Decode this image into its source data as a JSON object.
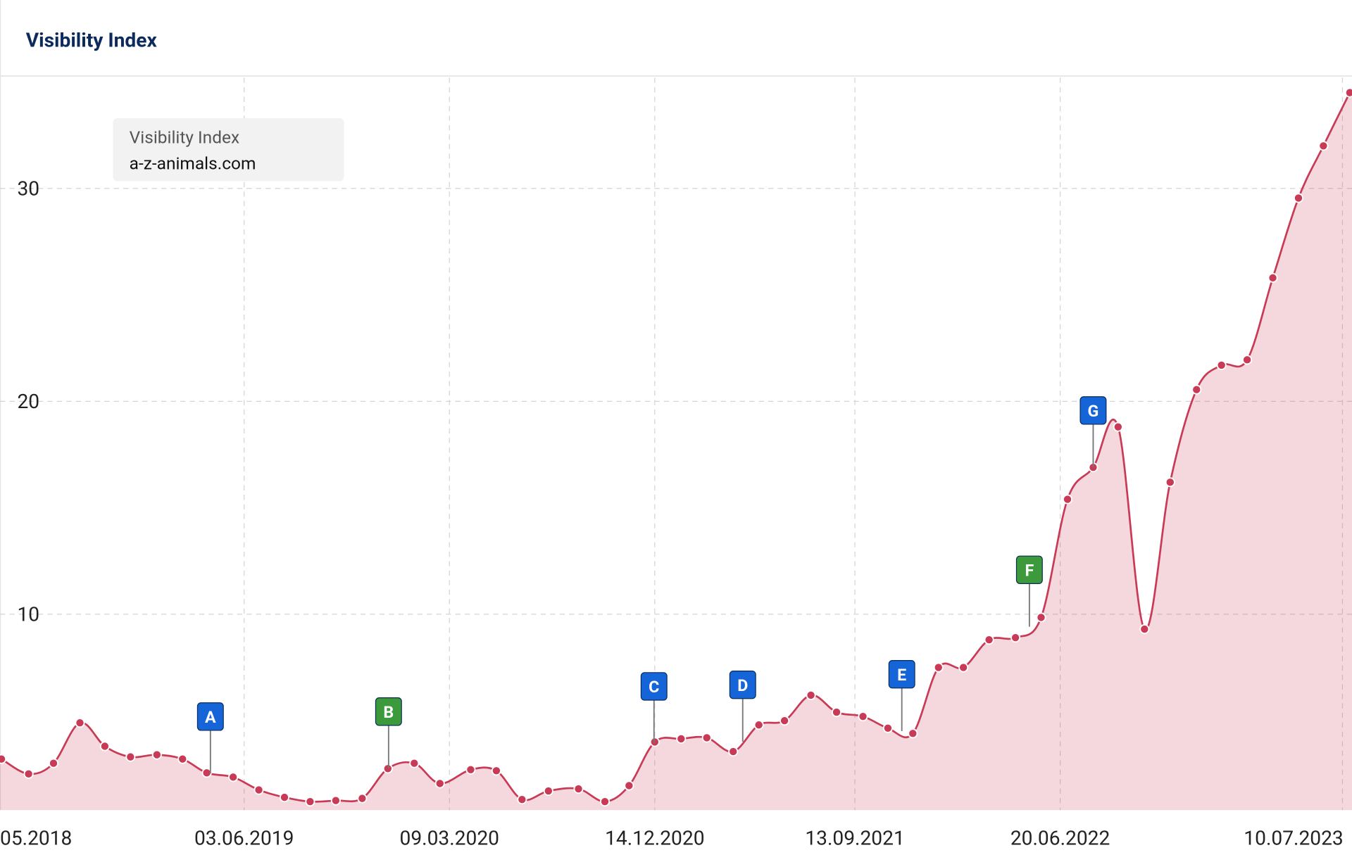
{
  "chart_data": {
    "type": "line",
    "title": "Visibility Index",
    "legend_title": "Visibility Index",
    "series": [
      {
        "name": "a-z-animals.com",
        "color": "#c83a55",
        "x": [
          "2018-07-07",
          "2018-08-13",
          "2018-09-16",
          "2018-10-22",
          "2018-11-25",
          "2018-12-30",
          "2019-02-04",
          "2019-03-11",
          "2019-04-13",
          "2019-05-19",
          "2019-06-23",
          "2019-07-28",
          "2019-09-01",
          "2019-10-06",
          "2019-11-11",
          "2019-12-16",
          "2020-01-21",
          "2020-02-25",
          "2020-04-07",
          "2020-05-12",
          "2020-06-16",
          "2020-07-22",
          "2020-09-01",
          "2020-10-07",
          "2020-11-09",
          "2020-12-14",
          "2021-01-19",
          "2021-02-23",
          "2021-03-31",
          "2021-05-05",
          "2021-06-09",
          "2021-07-15",
          "2021-08-19",
          "2021-09-24",
          "2021-10-28",
          "2021-12-01",
          "2022-01-05",
          "2022-02-08",
          "2022-03-15",
          "2022-04-20",
          "2022-05-25",
          "2022-06-30",
          "2022-08-04",
          "2022-09-07",
          "2022-10-13",
          "2022-11-17",
          "2022-12-23",
          "2023-01-26",
          "2023-03-02",
          "2023-04-06",
          "2023-05-11",
          "2023-06-14",
          "2023-07-20"
        ],
        "values": [
          3.2,
          2.5,
          3.0,
          4.9,
          3.8,
          3.3,
          3.4,
          3.2,
          2.55,
          2.35,
          1.75,
          1.4,
          1.2,
          1.25,
          1.35,
          2.75,
          3.0,
          2.05,
          2.7,
          2.65,
          1.3,
          1.7,
          1.8,
          1.2,
          1.95,
          4.0,
          4.15,
          4.2,
          3.55,
          4.8,
          5.0,
          6.2,
          5.4,
          5.2,
          4.65,
          4.4,
          7.5,
          7.5,
          8.8,
          8.9,
          9.85,
          15.4,
          16.9,
          18.8,
          9.3,
          16.2,
          20.55,
          21.7,
          21.95,
          25.8,
          29.55,
          32.0,
          34.5
        ]
      }
    ],
    "xlim": [
      "2018-07-05",
      "2023-07-23"
    ],
    "xticks": [
      {
        "value": "2018-05-28",
        "label": "05.2018"
      },
      {
        "value": "2019-06-03",
        "label": "03.06.2019"
      },
      {
        "value": "2020-03-09",
        "label": "09.03.2020"
      },
      {
        "value": "2020-12-14",
        "label": "14.12.2020"
      },
      {
        "value": "2021-09-13",
        "label": "13.09.2021"
      },
      {
        "value": "2022-06-20",
        "label": "20.06.2022"
      },
      {
        "value": "2023-07-10",
        "label": "10.07.2023"
      }
    ],
    "ylim": [
      0.8,
      35.2
    ],
    "yticks": [
      10,
      20,
      30
    ],
    "grid": true,
    "annotations": [
      {
        "label": "A",
        "x": "2019-04-18",
        "color": "#1565d8"
      },
      {
        "label": "B",
        "x": "2019-12-17",
        "color": "#3c9a3c"
      },
      {
        "label": "C",
        "x": "2020-12-13",
        "color": "#1565d8"
      },
      {
        "label": "D",
        "x": "2021-04-13",
        "color": "#1565d8"
      },
      {
        "label": "E",
        "x": "2021-11-16",
        "color": "#1565d8"
      },
      {
        "label": "F",
        "x": "2022-05-09",
        "color": "#3c9a3c"
      },
      {
        "label": "G",
        "x": "2022-08-04",
        "color": "#1565d8"
      }
    ]
  }
}
